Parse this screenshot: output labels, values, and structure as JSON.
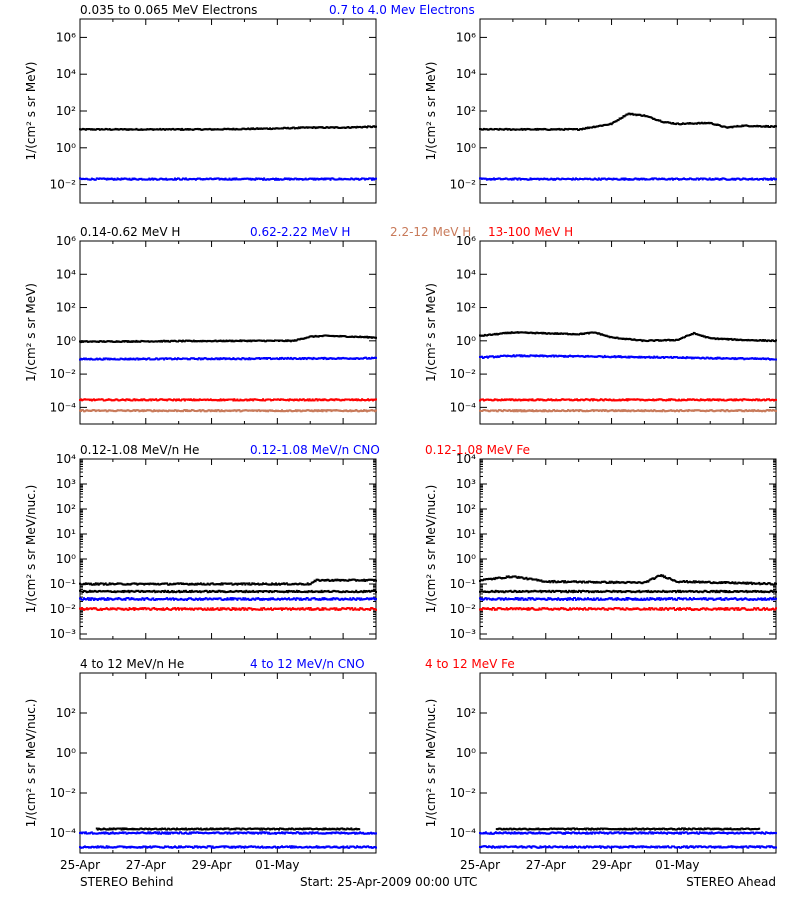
{
  "colors": {
    "black": "#000000",
    "blue": "#0000ff",
    "salmon": "#c87a5a",
    "red": "#ff0000"
  },
  "footer": {
    "left": "STEREO Behind",
    "center": "Start: 25-Apr-2009 00:00 UTC",
    "right": "STEREO Ahead"
  },
  "x_tick_labels": [
    "25-Apr",
    "27-Apr",
    "29-Apr",
    "01-May"
  ],
  "chart_data": [
    {
      "type": "scatter",
      "title_segments": [
        {
          "text": "0.035 to 0.065 MeV Electrons",
          "color": "black"
        },
        {
          "text": "0.7 to 4.0 Mev Electrons",
          "color": "blue"
        }
      ],
      "ylabel": "1/(cm² s sr MeV)",
      "y_scale": "log",
      "ylim_log10": [
        -3,
        7
      ],
      "y_tick_labels": [
        "10⁻²",
        "10⁰",
        "10²",
        "10⁴",
        "10⁶"
      ],
      "y_tick_log10": [
        -2,
        0,
        2,
        4,
        6
      ],
      "xlim_days": [
        0,
        9
      ],
      "panels": [
        {
          "spacecraft": "STEREO Behind",
          "series": [
            {
              "color": "black",
              "x": [
                0,
                2,
                4,
                6,
                7,
                8,
                9
              ],
              "log10y": [
                1.0,
                1.0,
                1.0,
                1.05,
                1.1,
                1.1,
                1.15
              ]
            },
            {
              "color": "blue",
              "x": [
                0,
                3,
                6,
                9
              ],
              "log10y": [
                -1.7,
                -1.7,
                -1.7,
                -1.7
              ]
            }
          ]
        },
        {
          "spacecraft": "STEREO Ahead",
          "series": [
            {
              "color": "black",
              "x": [
                0,
                3,
                4,
                4.5,
                5,
                5.6,
                6,
                7,
                7.5,
                8,
                9
              ],
              "log10y": [
                1.0,
                1.0,
                1.3,
                1.85,
                1.75,
                1.4,
                1.3,
                1.35,
                1.1,
                1.2,
                1.15
              ]
            },
            {
              "color": "blue",
              "x": [
                0,
                3,
                6,
                9
              ],
              "log10y": [
                -1.7,
                -1.7,
                -1.7,
                -1.7
              ]
            }
          ]
        }
      ]
    },
    {
      "type": "scatter",
      "title_segments": [
        {
          "text": "0.14-0.62 MeV H",
          "color": "black"
        },
        {
          "text": "0.62-2.22 MeV H",
          "color": "blue"
        },
        {
          "text": "2.2-12 MeV H",
          "color": "salmon"
        },
        {
          "text": "13-100 MeV H",
          "color": "red"
        }
      ],
      "ylabel": "1/(cm² s sr MeV)",
      "y_scale": "log",
      "ylim_log10": [
        -5,
        6
      ],
      "y_tick_labels": [
        "10⁻⁴",
        "10⁻²",
        "10⁰",
        "10²",
        "10⁴",
        "10⁶"
      ],
      "y_tick_log10": [
        -4,
        -2,
        0,
        2,
        4,
        6
      ],
      "xlim_days": [
        0,
        9
      ],
      "panels": [
        {
          "spacecraft": "STEREO Behind",
          "series": [
            {
              "color": "black",
              "x": [
                0,
                5,
                6.5,
                7,
                7.5,
                9
              ],
              "log10y": [
                -0.05,
                0.0,
                0.0,
                0.25,
                0.3,
                0.2
              ]
            },
            {
              "color": "blue",
              "x": [
                0,
                9
              ],
              "log10y": [
                -1.1,
                -1.05
              ]
            },
            {
              "color": "salmon",
              "x": [
                0,
                9
              ],
              "log10y": [
                -4.2,
                -4.2
              ]
            },
            {
              "color": "red",
              "x": [
                0,
                9
              ],
              "log10y": [
                -3.55,
                -3.55
              ]
            }
          ]
        },
        {
          "spacecraft": "STEREO Ahead",
          "series": [
            {
              "color": "black",
              "x": [
                0,
                1,
                2,
                3,
                3.5,
                4,
                5,
                6,
                6.5,
                7,
                8,
                9
              ],
              "log10y": [
                0.3,
                0.5,
                0.45,
                0.4,
                0.5,
                0.2,
                0.0,
                0.05,
                0.45,
                0.15,
                0.05,
                0.0
              ]
            },
            {
              "color": "blue",
              "x": [
                0,
                1,
                4,
                9
              ],
              "log10y": [
                -1.0,
                -0.9,
                -0.95,
                -1.1
              ]
            },
            {
              "color": "salmon",
              "x": [
                0,
                9
              ],
              "log10y": [
                -4.2,
                -4.2
              ]
            },
            {
              "color": "red",
              "x": [
                0,
                9
              ],
              "log10y": [
                -3.55,
                -3.55
              ]
            }
          ]
        }
      ]
    },
    {
      "type": "scatter",
      "title_segments": [
        {
          "text": "0.12-1.08 MeV/n He",
          "color": "black"
        },
        {
          "text": "0.12-1.08 MeV/n CNO",
          "color": "blue"
        },
        {
          "text": "0.12-1.08 MeV Fe",
          "color": "red"
        }
      ],
      "ylabel": "1/(cm² s sr MeV/nuc.)",
      "y_scale": "log",
      "ylim_log10": [
        -3.2,
        4
      ],
      "y_tick_labels": [
        "10⁻³",
        "10⁻²",
        "10⁻¹",
        "10⁰",
        "10¹",
        "10²",
        "10³",
        "10⁴"
      ],
      "y_tick_log10": [
        -3,
        -2,
        -1,
        0,
        1,
        2,
        3,
        4
      ],
      "xlim_days": [
        0,
        9
      ],
      "panels": [
        {
          "spacecraft": "STEREO Behind",
          "series": [
            {
              "color": "black",
              "x": [
                0,
                9
              ],
              "log10y": [
                -1.3,
                -1.3
              ]
            },
            {
              "color": "black",
              "x": [
                0,
                7,
                7.2,
                9
              ],
              "log10y": [
                -1.0,
                -1.0,
                -0.85,
                -0.85
              ]
            },
            {
              "color": "blue",
              "x": [
                0,
                9
              ],
              "log10y": [
                -1.6,
                -1.6
              ]
            },
            {
              "color": "red",
              "x": [
                0,
                9
              ],
              "log10y": [
                -2.0,
                -2.0
              ]
            }
          ]
        },
        {
          "spacecraft": "STEREO Ahead",
          "series": [
            {
              "color": "black",
              "x": [
                0,
                9
              ],
              "log10y": [
                -1.3,
                -1.3
              ]
            },
            {
              "color": "black",
              "x": [
                0,
                1,
                2,
                5,
                5.5,
                6,
                9
              ],
              "log10y": [
                -0.85,
                -0.7,
                -0.9,
                -0.95,
                -0.65,
                -0.9,
                -1.0
              ]
            },
            {
              "color": "blue",
              "x": [
                0,
                9
              ],
              "log10y": [
                -1.6,
                -1.6
              ]
            },
            {
              "color": "red",
              "x": [
                0,
                9
              ],
              "log10y": [
                -2.0,
                -2.0
              ]
            }
          ]
        }
      ]
    },
    {
      "type": "scatter",
      "title_segments": [
        {
          "text": "4 to 12 MeV/n He",
          "color": "black"
        },
        {
          "text": "4 to 12 MeV/n CNO",
          "color": "blue"
        },
        {
          "text": "4 to 12 MeV Fe",
          "color": "red"
        }
      ],
      "ylabel": "1/(cm² s sr MeV/nuc.)",
      "y_scale": "log",
      "ylim_log10": [
        -5,
        4
      ],
      "y_tick_labels": [
        "10⁻⁴",
        "10⁻²",
        "10⁰",
        "10²"
      ],
      "y_tick_log10": [
        -4,
        -2,
        0,
        2
      ],
      "xlim_days": [
        0,
        9
      ],
      "panels": [
        {
          "spacecraft": "STEREO Behind",
          "series": [
            {
              "color": "black",
              "x": [
                0.5,
                1.5,
                2.5,
                3.5,
                4.5,
                5.5,
                6.5,
                7.5,
                8.5
              ],
              "log10y": [
                -3.8,
                -3.8,
                -3.8,
                -3.8,
                -3.8,
                -3.8,
                -3.8,
                -3.8,
                -3.8
              ]
            },
            {
              "color": "blue",
              "x": [
                0,
                9
              ],
              "log10y": [
                -4.0,
                -4.0
              ]
            },
            {
              "color": "blue",
              "x": [
                0,
                9
              ],
              "log10y": [
                -4.7,
                -4.7
              ]
            }
          ]
        },
        {
          "spacecraft": "STEREO Ahead",
          "series": [
            {
              "color": "black",
              "x": [
                0.5,
                1.5,
                2.5,
                3.5,
                4.5,
                5.5,
                6.5,
                7.5,
                8.5
              ],
              "log10y": [
                -3.8,
                -3.8,
                -3.8,
                -3.8,
                -3.8,
                -3.8,
                -3.8,
                -3.8,
                -3.8
              ]
            },
            {
              "color": "blue",
              "x": [
                0,
                9
              ],
              "log10y": [
                -4.0,
                -4.0
              ]
            },
            {
              "color": "blue",
              "x": [
                0,
                9
              ],
              "log10y": [
                -4.7,
                -4.7
              ]
            }
          ]
        }
      ]
    }
  ]
}
